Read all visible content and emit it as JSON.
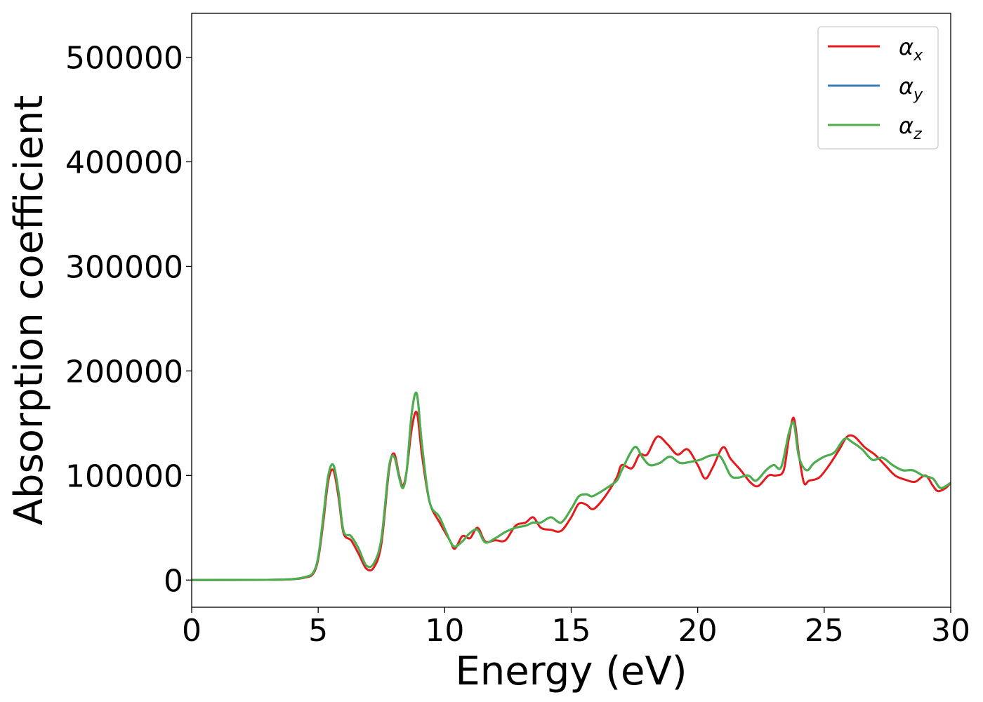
{
  "chart_data": {
    "type": "line",
    "title": "",
    "xlabel": "Energy (eV)",
    "ylabel": "Absorption coefficient",
    "xlim": [
      0,
      30
    ],
    "ylim": [
      -26000,
      542000
    ],
    "xticks": [
      0,
      5,
      10,
      15,
      20,
      25,
      30
    ],
    "yticks": [
      0,
      100000,
      200000,
      300000,
      400000,
      500000
    ],
    "xtick_labels": [
      "0",
      "5",
      "10",
      "15",
      "20",
      "25",
      "30"
    ],
    "ytick_labels": [
      "0",
      "100000",
      "200000",
      "300000",
      "400000",
      "500000"
    ],
    "grid": false,
    "legend_position": "top-right",
    "series": [
      {
        "name": "α_x",
        "label_main": "α",
        "label_sub": "x",
        "color": "#e41a1c",
        "x": [
          0,
          3,
          4,
          4.5,
          4.8,
          5.0,
          5.2,
          5.4,
          5.6,
          5.8,
          6.0,
          6.3,
          6.6,
          6.9,
          7.2,
          7.5,
          7.8,
          8.0,
          8.2,
          8.35,
          8.5,
          8.7,
          8.9,
          9.1,
          9.4,
          9.8,
          10.2,
          10.4,
          10.7,
          11.0,
          11.3,
          11.6,
          12.0,
          12.4,
          12.8,
          13.2,
          13.5,
          13.8,
          14.2,
          14.6,
          15.0,
          15.3,
          15.6,
          15.8,
          16.0,
          16.4,
          16.8,
          17.0,
          17.4,
          17.7,
          18.0,
          18.4,
          18.8,
          19.2,
          19.6,
          20.0,
          20.3,
          20.6,
          21.0,
          21.3,
          21.7,
          22.1,
          22.4,
          22.8,
          23.1,
          23.4,
          23.6,
          23.8,
          24.0,
          24.2,
          24.4,
          24.8,
          25.2,
          25.6,
          25.9,
          26.2,
          26.6,
          27.0,
          27.4,
          27.8,
          28.2,
          28.6,
          29.0,
          29.3,
          29.5,
          29.8,
          30.0
        ],
        "y": [
          0,
          200,
          800,
          2500,
          6000,
          20000,
          55000,
          95000,
          105000,
          80000,
          45000,
          38000,
          25000,
          11000,
          12000,
          35000,
          105000,
          121000,
          100000,
          90000,
          105000,
          145000,
          160000,
          120000,
          75000,
          55000,
          38000,
          30000,
          42000,
          40000,
          50000,
          37000,
          38000,
          38000,
          52000,
          55000,
          60000,
          50000,
          48000,
          47000,
          60000,
          73000,
          72000,
          68000,
          70000,
          82000,
          98000,
          110000,
          107000,
          120000,
          120000,
          137000,
          130000,
          120000,
          125000,
          110000,
          97000,
          108000,
          127000,
          116000,
          105000,
          93000,
          90000,
          100000,
          100000,
          105000,
          135000,
          155000,
          120000,
          93000,
          95000,
          98000,
          110000,
          125000,
          137000,
          137000,
          127000,
          120000,
          110000,
          100000,
          96000,
          94000,
          100000,
          90000,
          85000,
          88000,
          93000
        ]
      },
      {
        "name": "α_y",
        "label_main": "α",
        "label_sub": "y",
        "color": "#377eb8",
        "x": [
          0,
          3,
          4,
          4.5,
          4.8,
          5.0,
          5.2,
          5.4,
          5.6,
          5.8,
          6.0,
          6.3,
          6.6,
          6.9,
          7.2,
          7.5,
          7.8,
          8.0,
          8.2,
          8.35,
          8.5,
          8.7,
          8.9,
          9.1,
          9.4,
          9.8,
          10.2,
          10.4,
          10.7,
          11.0,
          11.3,
          11.6,
          12.0,
          12.4,
          12.8,
          13.2,
          13.5,
          13.8,
          14.2,
          14.6,
          15.0,
          15.3,
          15.6,
          15.8,
          16.0,
          16.4,
          16.8,
          17.0,
          17.5,
          17.8,
          18.1,
          18.5,
          18.9,
          19.3,
          19.7,
          20.1,
          20.5,
          20.9,
          21.3,
          21.6,
          22.0,
          22.3,
          22.7,
          23.0,
          23.3,
          23.6,
          23.8,
          24.0,
          24.3,
          24.6,
          25.0,
          25.4,
          25.8,
          26.1,
          26.5,
          26.9,
          27.3,
          27.7,
          28.1,
          28.5,
          28.9,
          29.3,
          29.6,
          30.0
        ],
        "y": [
          0,
          200,
          900,
          3000,
          7000,
          22000,
          60000,
          100000,
          110000,
          85000,
          47000,
          42000,
          30000,
          14000,
          16000,
          40000,
          108000,
          118000,
          98000,
          88000,
          105000,
          160000,
          178000,
          130000,
          75000,
          60000,
          38000,
          32000,
          37000,
          45000,
          48000,
          36000,
          40000,
          46000,
          50000,
          52000,
          55000,
          55000,
          60000,
          55000,
          68000,
          80000,
          82000,
          80000,
          82000,
          88000,
          95000,
          105000,
          127000,
          118000,
          110000,
          112000,
          118000,
          112000,
          113000,
          115000,
          119000,
          118000,
          100000,
          98000,
          100000,
          95000,
          105000,
          110000,
          108000,
          140000,
          150000,
          118000,
          105000,
          112000,
          118000,
          122000,
          135000,
          132000,
          125000,
          115000,
          117000,
          110000,
          105000,
          105000,
          100000,
          97000,
          88000,
          93000
        ]
      },
      {
        "name": "α_z",
        "label_main": "α",
        "label_sub": "z",
        "color": "#4daf4a",
        "x": [
          0,
          3,
          4,
          4.5,
          4.8,
          5.0,
          5.2,
          5.4,
          5.6,
          5.8,
          6.0,
          6.3,
          6.6,
          6.9,
          7.2,
          7.5,
          7.8,
          8.0,
          8.2,
          8.35,
          8.5,
          8.7,
          8.9,
          9.1,
          9.4,
          9.8,
          10.2,
          10.4,
          10.7,
          11.0,
          11.3,
          11.6,
          12.0,
          12.4,
          12.8,
          13.2,
          13.5,
          13.8,
          14.2,
          14.6,
          15.0,
          15.3,
          15.6,
          15.8,
          16.0,
          16.4,
          16.8,
          17.0,
          17.5,
          17.8,
          18.1,
          18.5,
          18.9,
          19.3,
          19.7,
          20.1,
          20.5,
          20.9,
          21.3,
          21.6,
          22.0,
          22.3,
          22.7,
          23.0,
          23.3,
          23.6,
          23.8,
          24.0,
          24.3,
          24.6,
          25.0,
          25.4,
          25.8,
          26.1,
          26.5,
          26.9,
          27.3,
          27.7,
          28.1,
          28.5,
          28.9,
          29.3,
          29.6,
          30.0
        ],
        "y": [
          0,
          200,
          900,
          3000,
          7000,
          22000,
          60000,
          100000,
          110000,
          85000,
          47000,
          42000,
          30000,
          14000,
          16000,
          40000,
          108000,
          118000,
          98000,
          88000,
          105000,
          160000,
          178000,
          130000,
          75000,
          60000,
          38000,
          32000,
          37000,
          45000,
          48000,
          36000,
          40000,
          46000,
          50000,
          52000,
          55000,
          55000,
          60000,
          55000,
          68000,
          80000,
          82000,
          80000,
          82000,
          88000,
          95000,
          105000,
          127000,
          118000,
          110000,
          112000,
          118000,
          112000,
          113000,
          115000,
          119000,
          118000,
          100000,
          98000,
          100000,
          95000,
          105000,
          110000,
          108000,
          140000,
          150000,
          118000,
          105000,
          112000,
          118000,
          122000,
          135000,
          132000,
          125000,
          115000,
          117000,
          110000,
          105000,
          105000,
          100000,
          97000,
          88000,
          93000
        ]
      }
    ]
  }
}
